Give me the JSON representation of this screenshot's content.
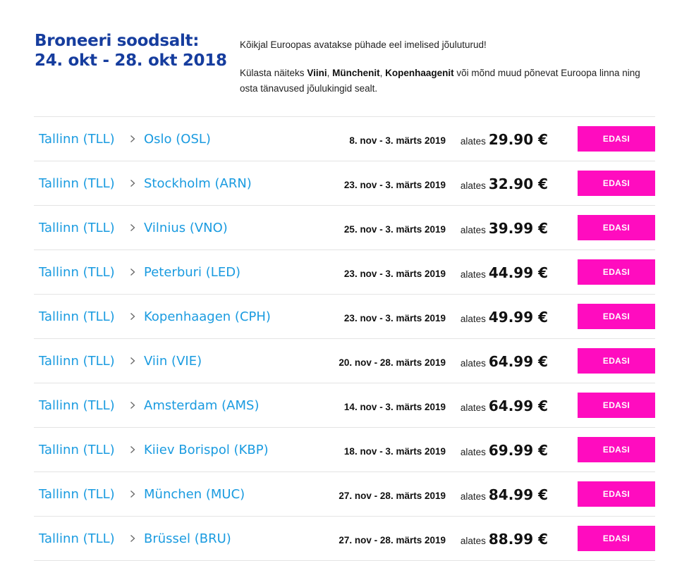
{
  "header": {
    "title_line1": "Broneeri soodsalt:",
    "title_line2": "24. okt - 28. okt 2018",
    "intro_1": "Kõikjal Euroopas avatakse pühade eel imelised jõuluturud!",
    "intro_2_prefix": "Külasta näiteks ",
    "intro_2_city1": "Viini",
    "intro_2_sep1": ", ",
    "intro_2_city2": "Münchenit",
    "intro_2_sep2": ", ",
    "intro_2_city3": "Kopenhaagenit",
    "intro_2_suffix": " või mõnd muud põnevat Euroopa linna ning osta tänavused jõulukingid sealt."
  },
  "colors": {
    "title": "#163d9e",
    "link": "#1a9be0",
    "button": "#ff0cbf",
    "divider": "#e4e4e4"
  },
  "icons": {
    "separator": "chevron-right-icon"
  },
  "routes": [
    {
      "origin": "Tallinn (TLL)",
      "destination": "Oslo (OSL)",
      "dates": "8. nov - 3. märts 2019",
      "from_label": "alates",
      "price": "29.90 €",
      "button": "EDASI"
    },
    {
      "origin": "Tallinn (TLL)",
      "destination": "Stockholm (ARN)",
      "dates": "23. nov - 3. märts 2019",
      "from_label": "alates",
      "price": "32.90 €",
      "button": "EDASI"
    },
    {
      "origin": "Tallinn (TLL)",
      "destination": "Vilnius (VNO)",
      "dates": "25. nov - 3. märts 2019",
      "from_label": "alates",
      "price": "39.99 €",
      "button": "EDASI"
    },
    {
      "origin": "Tallinn (TLL)",
      "destination": "Peterburi (LED)",
      "dates": "23. nov - 3. märts 2019",
      "from_label": "alates",
      "price": "44.99 €",
      "button": "EDASI"
    },
    {
      "origin": "Tallinn (TLL)",
      "destination": "Kopenhaagen (CPH)",
      "dates": "23. nov - 3. märts 2019",
      "from_label": "alates",
      "price": "49.99 €",
      "button": "EDASI"
    },
    {
      "origin": "Tallinn (TLL)",
      "destination": "Viin (VIE)",
      "dates": "20. nov - 28. märts 2019",
      "from_label": "alates",
      "price": "64.99 €",
      "button": "EDASI"
    },
    {
      "origin": "Tallinn (TLL)",
      "destination": "Amsterdam (AMS)",
      "dates": "14. nov - 3. märts 2019",
      "from_label": "alates",
      "price": "64.99 €",
      "button": "EDASI"
    },
    {
      "origin": "Tallinn (TLL)",
      "destination": "Kiiev Borispol (KBP)",
      "dates": "18. nov - 3. märts 2019",
      "from_label": "alates",
      "price": "69.99 €",
      "button": "EDASI"
    },
    {
      "origin": "Tallinn (TLL)",
      "destination": "München (MUC)",
      "dates": "27. nov - 28. märts 2019",
      "from_label": "alates",
      "price": "84.99 €",
      "button": "EDASI"
    },
    {
      "origin": "Tallinn (TLL)",
      "destination": "Brüssel (BRU)",
      "dates": "27. nov - 28. märts 2019",
      "from_label": "alates",
      "price": "88.99 €",
      "button": "EDASI"
    }
  ]
}
